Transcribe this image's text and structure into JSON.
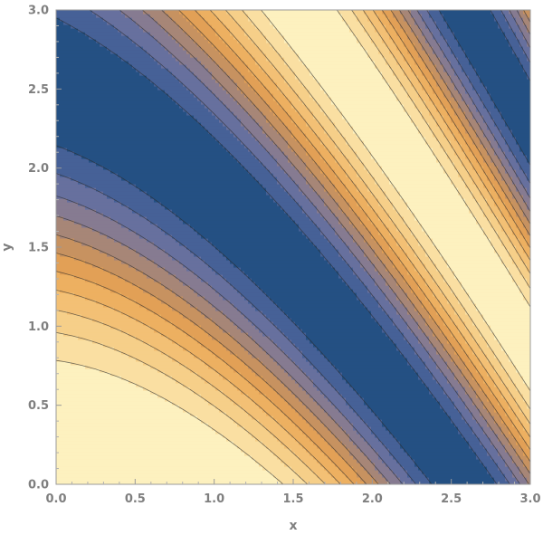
{
  "chart_data": {
    "type": "heatmap",
    "subtype": "contour",
    "title": "",
    "xlabel": "x",
    "ylabel": "y",
    "xlim": [
      0,
      3
    ],
    "ylim": [
      0,
      3
    ],
    "x_ticks": [
      "0.0",
      "0.5",
      "1.0",
      "1.5",
      "2.0",
      "2.5",
      "3.0"
    ],
    "y_ticks": [
      "0.0",
      "0.5",
      "1.0",
      "1.5",
      "2.0",
      "2.5",
      "3.0"
    ],
    "frame": true,
    "color_scale": [
      "#245083",
      "#5a6ba3",
      "#8a7d8f",
      "#c08e63",
      "#e9a453",
      "#f2be72",
      "#f8d592",
      "#fdf1bf"
    ],
    "line_color": "#2a2a2a",
    "contour_levels": 12,
    "field_description": "periodic bands in (x + 1.5 y); max at origin-lower region",
    "value_range": [
      -1,
      1
    ]
  }
}
